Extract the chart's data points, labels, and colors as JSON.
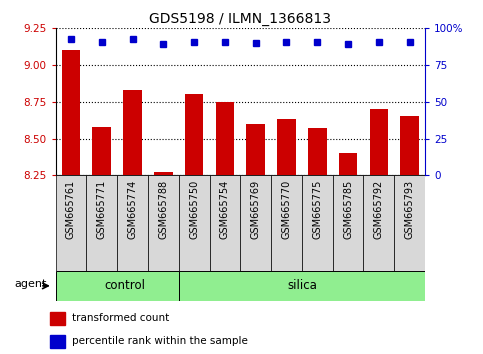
{
  "title": "GDS5198 / ILMN_1366813",
  "samples": [
    "GSM665761",
    "GSM665771",
    "GSM665774",
    "GSM665788",
    "GSM665750",
    "GSM665754",
    "GSM665769",
    "GSM665770",
    "GSM665775",
    "GSM665785",
    "GSM665792",
    "GSM665793"
  ],
  "transformed_count": [
    9.1,
    8.58,
    8.83,
    8.27,
    8.8,
    8.75,
    8.6,
    8.63,
    8.57,
    8.4,
    8.7,
    8.65
  ],
  "percentile_rank": [
    93,
    91,
    93,
    89,
    91,
    91,
    90,
    91,
    91,
    89,
    91,
    91
  ],
  "ylim_left": [
    8.25,
    9.25
  ],
  "ylim_right": [
    0,
    100
  ],
  "yticks_left": [
    8.25,
    8.5,
    8.75,
    9.0,
    9.25
  ],
  "yticks_right": [
    0,
    25,
    50,
    75,
    100
  ],
  "group_separator": 4,
  "bar_color": "#CC0000",
  "dot_color": "#0000CC",
  "bar_width": 0.6,
  "agent_label": "agent",
  "tick_label_color_left": "#CC0000",
  "tick_label_color_right": "#0000CC",
  "green_color": "#90EE90",
  "legend_items": [
    {
      "label": "transformed count",
      "color": "#CC0000"
    },
    {
      "label": "percentile rank within the sample",
      "color": "#0000CC"
    }
  ]
}
